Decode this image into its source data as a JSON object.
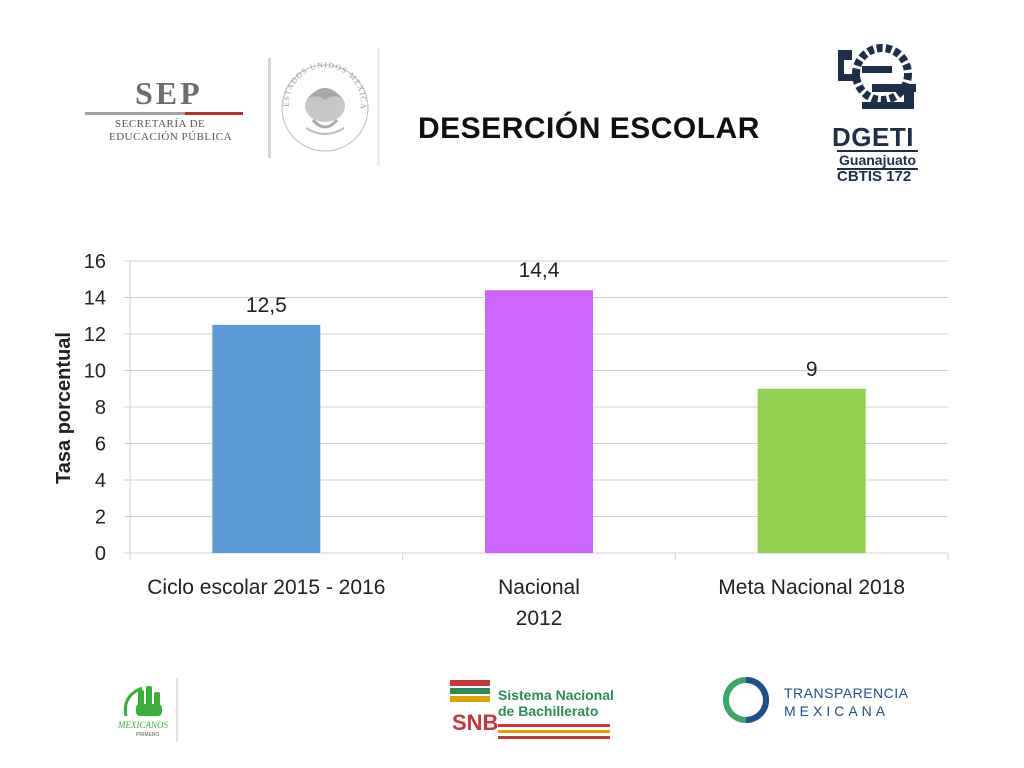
{
  "header": {
    "title": "DESERCIÓN ESCOLAR",
    "sep": {
      "word": "SEP",
      "line1": "SECRETARÍA DE",
      "line2": "EDUCACIÓN PÚBLICA"
    },
    "escudo_text": "ESTADOS UNIDOS MEXICANOS",
    "dgeti": {
      "name": "DGETI",
      "state": "Guanajuato",
      "school": "CBTIS 172"
    }
  },
  "footer": {
    "mexicanos": "MEXICANOS",
    "mexicanos_sub": "PRIMERO",
    "snb_abbr": "SNB",
    "snb_line1": "Sistema Nacional",
    "snb_line2": "de Bachillerato",
    "tm_line1": "TRANSPARENCIA",
    "tm_line2": "MEXICANA"
  },
  "colors": {
    "bar1": "#5b9bd5",
    "bar2": "#cc66ff",
    "bar3": "#92d050",
    "grid": "#d0d0d0",
    "dgeti": "#1e2f4a",
    "tm_green": "#3aa66b",
    "tm_blue": "#1f4e8c"
  },
  "chart_data": {
    "type": "bar",
    "title": "",
    "ylabel": "Tasa porcentual",
    "xlabel": "",
    "ylim": [
      0,
      16
    ],
    "yticks": [
      "0",
      "2",
      "4",
      "6",
      "8",
      "10",
      "12",
      "14",
      "16"
    ],
    "ytick_values": [
      0,
      2,
      4,
      6,
      8,
      10,
      12,
      14,
      16
    ],
    "categories": [
      [
        "Ciclo escolar 2015 - 2016"
      ],
      [
        "Nacional",
        "2012"
      ],
      [
        "Meta Nacional 2018"
      ]
    ],
    "values": [
      12.5,
      14.4,
      9
    ],
    "data_labels": [
      "12,5",
      "14,4",
      "9"
    ],
    "grid": true,
    "legend": "none"
  }
}
